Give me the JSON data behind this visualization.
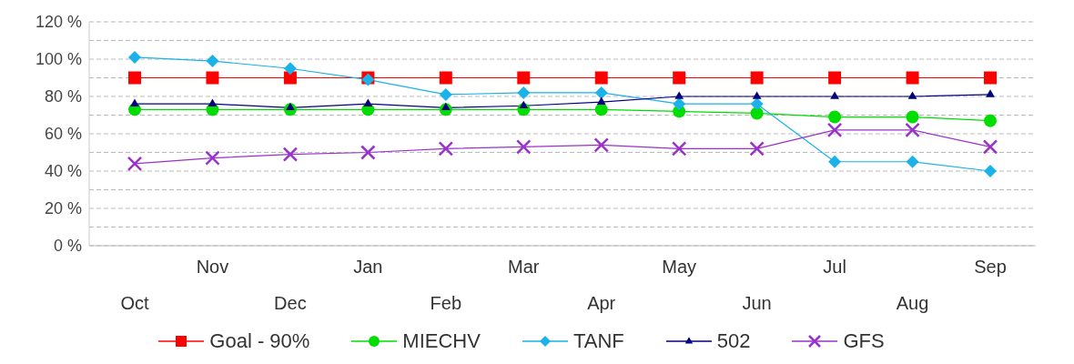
{
  "chart_data": {
    "type": "line",
    "categories": [
      "Oct",
      "Nov",
      "Dec",
      "Jan",
      "Feb",
      "Mar",
      "Apr",
      "May",
      "Jun",
      "Jul",
      "Aug",
      "Sep"
    ],
    "ylim": [
      0,
      120
    ],
    "yticks": [
      {
        "value": 0,
        "label": "0 %"
      },
      {
        "value": 10,
        "label": null
      },
      {
        "value": 20,
        "label": "20 %"
      },
      {
        "value": 30,
        "label": null
      },
      {
        "value": 40,
        "label": "40 %"
      },
      {
        "value": 50,
        "label": null
      },
      {
        "value": 60,
        "label": "60 %"
      },
      {
        "value": 70,
        "label": null
      },
      {
        "value": 80,
        "label": "80 %"
      },
      {
        "value": 90,
        "label": null
      },
      {
        "value": 100,
        "label": "100 %"
      },
      {
        "value": 110,
        "label": null
      },
      {
        "value": 120,
        "label": "120 %"
      }
    ],
    "grid": "y",
    "legend": "bottom",
    "series": [
      {
        "name": "Goal - 90%",
        "color": "#ff0000",
        "marker": "square",
        "values": [
          90,
          90,
          90,
          90,
          90,
          90,
          90,
          90,
          90,
          90,
          90,
          90
        ]
      },
      {
        "name": "MIECHV",
        "color": "#00dd00",
        "marker": "circle",
        "values": [
          73,
          73,
          73,
          73,
          73,
          73,
          73,
          72,
          71,
          69,
          69,
          67
        ]
      },
      {
        "name": "TANF",
        "color": "#1ab2e8",
        "marker": "diamond",
        "values": [
          101,
          99,
          95,
          89,
          81,
          82,
          82,
          76,
          76,
          45,
          45,
          40
        ]
      },
      {
        "name": "502",
        "color": "#000080",
        "marker": "triangle",
        "values": [
          76,
          76,
          74,
          76,
          74,
          75,
          77,
          80,
          80,
          80,
          80,
          81
        ]
      },
      {
        "name": "GFS",
        "color": "#9932cc",
        "marker": "cross",
        "values": [
          44,
          47,
          49,
          50,
          52,
          53,
          54,
          52,
          52,
          62,
          62,
          53
        ]
      }
    ]
  }
}
